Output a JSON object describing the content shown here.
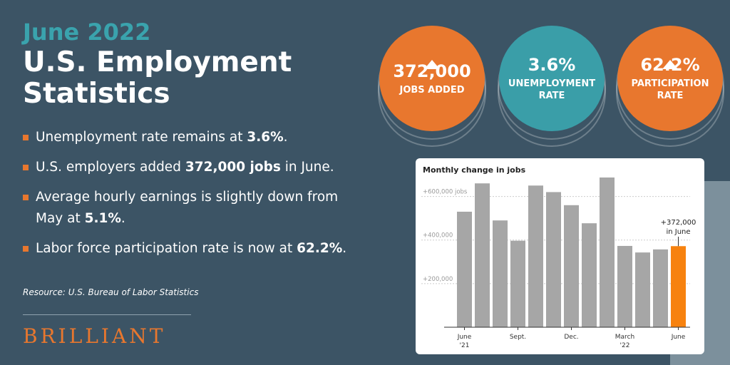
{
  "header": {
    "eyebrow": "June 2022",
    "title": "U.S. Employment Statistics"
  },
  "bullets": [
    [
      "Unemployment rate remains at ",
      "3.6%",
      "."
    ],
    [
      "U.S. employers added ",
      "372,000 jobs",
      " in June."
    ],
    [
      "Average hourly earnings is slightly down from May at ",
      "5.1%",
      "."
    ],
    [
      "Labor force participation rate is now at ",
      "62.2%",
      "."
    ]
  ],
  "source": "Resource: U.S. Bureau of Labor Statistics",
  "brand": "BRILLIANT",
  "stats": [
    {
      "value": "372,000",
      "label": "JOBS ADDED",
      "color": "#e8772e",
      "up": true
    },
    {
      "value": "3.6%",
      "label": "UNEMPLOYMENT RATE",
      "color": "#3a9ea8",
      "up": false
    },
    {
      "value": "62.2%",
      "label": "PARTICIPATION RATE",
      "color": "#e8772e",
      "up": true
    }
  ],
  "chart_data": {
    "type": "bar",
    "title": "Monthly change in jobs",
    "categories": [
      "June\n'21",
      null,
      null,
      "Sept.",
      null,
      null,
      "Dec.",
      null,
      null,
      "March\n'22",
      null,
      null,
      "June"
    ],
    "values": [
      530000,
      660000,
      490000,
      397000,
      650000,
      620000,
      560000,
      477000,
      687000,
      373000,
      343000,
      357000,
      372000
    ],
    "value_labels": [
      null,
      null,
      null,
      null,
      null,
      null,
      null,
      null,
      null,
      null,
      null,
      null,
      "+372,000"
    ],
    "annotation": "in June",
    "color": "#a6a6a6",
    "highlight_color": "#f7820f",
    "highlight_index": 12,
    "ylim": [
      0,
      700000
    ],
    "yticks": [
      {
        "value": 200000,
        "label": "+200,000"
      },
      {
        "value": 400000,
        "label": "+400,000"
      },
      {
        "value": 600000,
        "label": "+600,000 jobs"
      }
    ],
    "grid": true
  }
}
